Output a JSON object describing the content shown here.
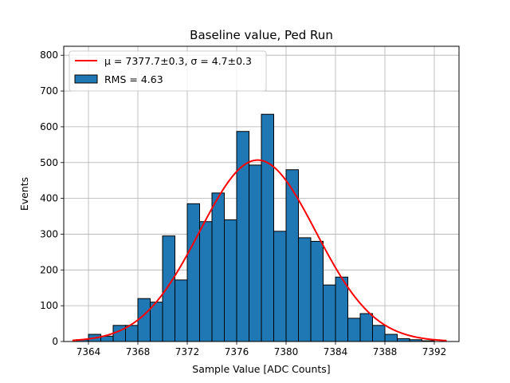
{
  "chart_data": {
    "type": "bar",
    "title": "Baseline value, Ped Run",
    "xlabel": "Sample Value [ADC Counts]",
    "ylabel": "Events",
    "xlim": [
      7362,
      7394
    ],
    "ylim": [
      0,
      825
    ],
    "xticks": [
      7364,
      7368,
      7372,
      7376,
      7380,
      7384,
      7388,
      7392
    ],
    "yticks": [
      0,
      100,
      200,
      300,
      400,
      500,
      600,
      700,
      800
    ],
    "grid": true,
    "legend_position": "upper-left",
    "bin_width": 1,
    "bin_edges_start": 7363.0,
    "values": [
      5,
      20,
      15,
      45,
      45,
      120,
      110,
      295,
      172,
      385,
      335,
      415,
      340,
      587,
      493,
      635,
      308,
      480,
      290,
      280,
      158,
      180,
      65,
      78,
      45,
      20,
      8,
      5,
      2,
      0
    ],
    "fit": {
      "name": "$\\mu = 7377.7\\pm0.3, \\sigma = 4.7\\pm0.3$",
      "display": "μ = 7377.7±0.3, σ = 4.7±0.3",
      "mu": 7377.7,
      "sigma": 4.7,
      "amplitude": 507,
      "x_range": [
        7362.7,
        7393.0
      ],
      "color": "#ff0000"
    },
    "histogram_label": "RMS = 4.63",
    "bar_color": "#1f77b4"
  }
}
